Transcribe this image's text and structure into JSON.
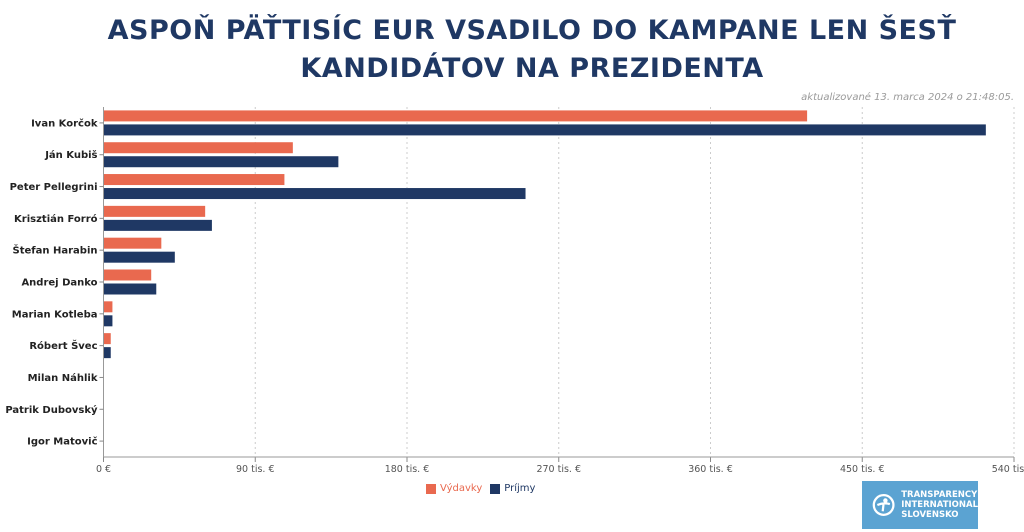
{
  "title_line1": "ASPOŇ PÄŤTISÍC EUR VSADILO DO KAMPANE LEN ŠESŤ",
  "title_line2": "KANDIDÁTOV NA PREZIDENTA",
  "updated": "aktualizované 13. marca 2024 o 21:48:05.",
  "logo": {
    "line1": "TRANSPARENCY",
    "line2": "INTERNATIONAL",
    "line3": "SLOVENSKO"
  },
  "colors": {
    "vydavky": "#e9694f",
    "prijmy": "#1f3864"
  },
  "chart_data": {
    "type": "bar",
    "orientation": "horizontal",
    "categories": [
      "Ivan Korčok",
      "Ján Kubiš",
      "Peter Pellegrini",
      "Krisztián Forró",
      "Štefan Harabin",
      "Andrej Danko",
      "Marian Kotleba",
      "Róbert Švec",
      "Milan Náhlik",
      "Patrik Dubovský",
      "Igor Matovič"
    ],
    "series": [
      {
        "name": "Výdavky",
        "color": "#e9694f",
        "values": [
          417,
          112,
          107,
          60,
          34,
          28,
          5,
          4,
          0,
          0,
          0
        ]
      },
      {
        "name": "Príjmy",
        "color": "#1f3864",
        "values": [
          523,
          139,
          250,
          64,
          42,
          31,
          5,
          4,
          0,
          0,
          0
        ]
      }
    ],
    "xlim": [
      0,
      540
    ],
    "xticks": [
      0,
      90,
      180,
      270,
      360,
      450,
      540
    ],
    "xtick_labels": [
      "0 €",
      "90 tis. €",
      "180 tis. €",
      "270 tis. €",
      "360 tis. €",
      "450 tis. €",
      "540 tis. €"
    ],
    "unit": "tis. €",
    "grid": "vertical dotted",
    "legend": "bottom-center"
  }
}
